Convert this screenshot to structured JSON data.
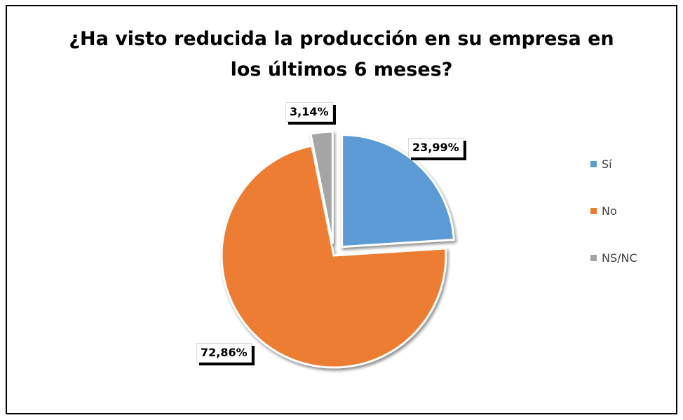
{
  "chart_data": {
    "type": "pie",
    "title": [
      "¿Ha visto reducida la producción en su empresa en",
      "los últimos 6 meses?"
    ],
    "categories": [
      "Sí",
      "No",
      "NS/NC"
    ],
    "values": [
      23.99,
      72.86,
      3.14
    ],
    "data_labels": [
      "23,99%",
      "72,86%",
      "3,14%"
    ],
    "colors": [
      "#5b9bd5",
      "#ed7d31",
      "#a5a5a5"
    ],
    "legend_position": "right",
    "exploded": true
  }
}
